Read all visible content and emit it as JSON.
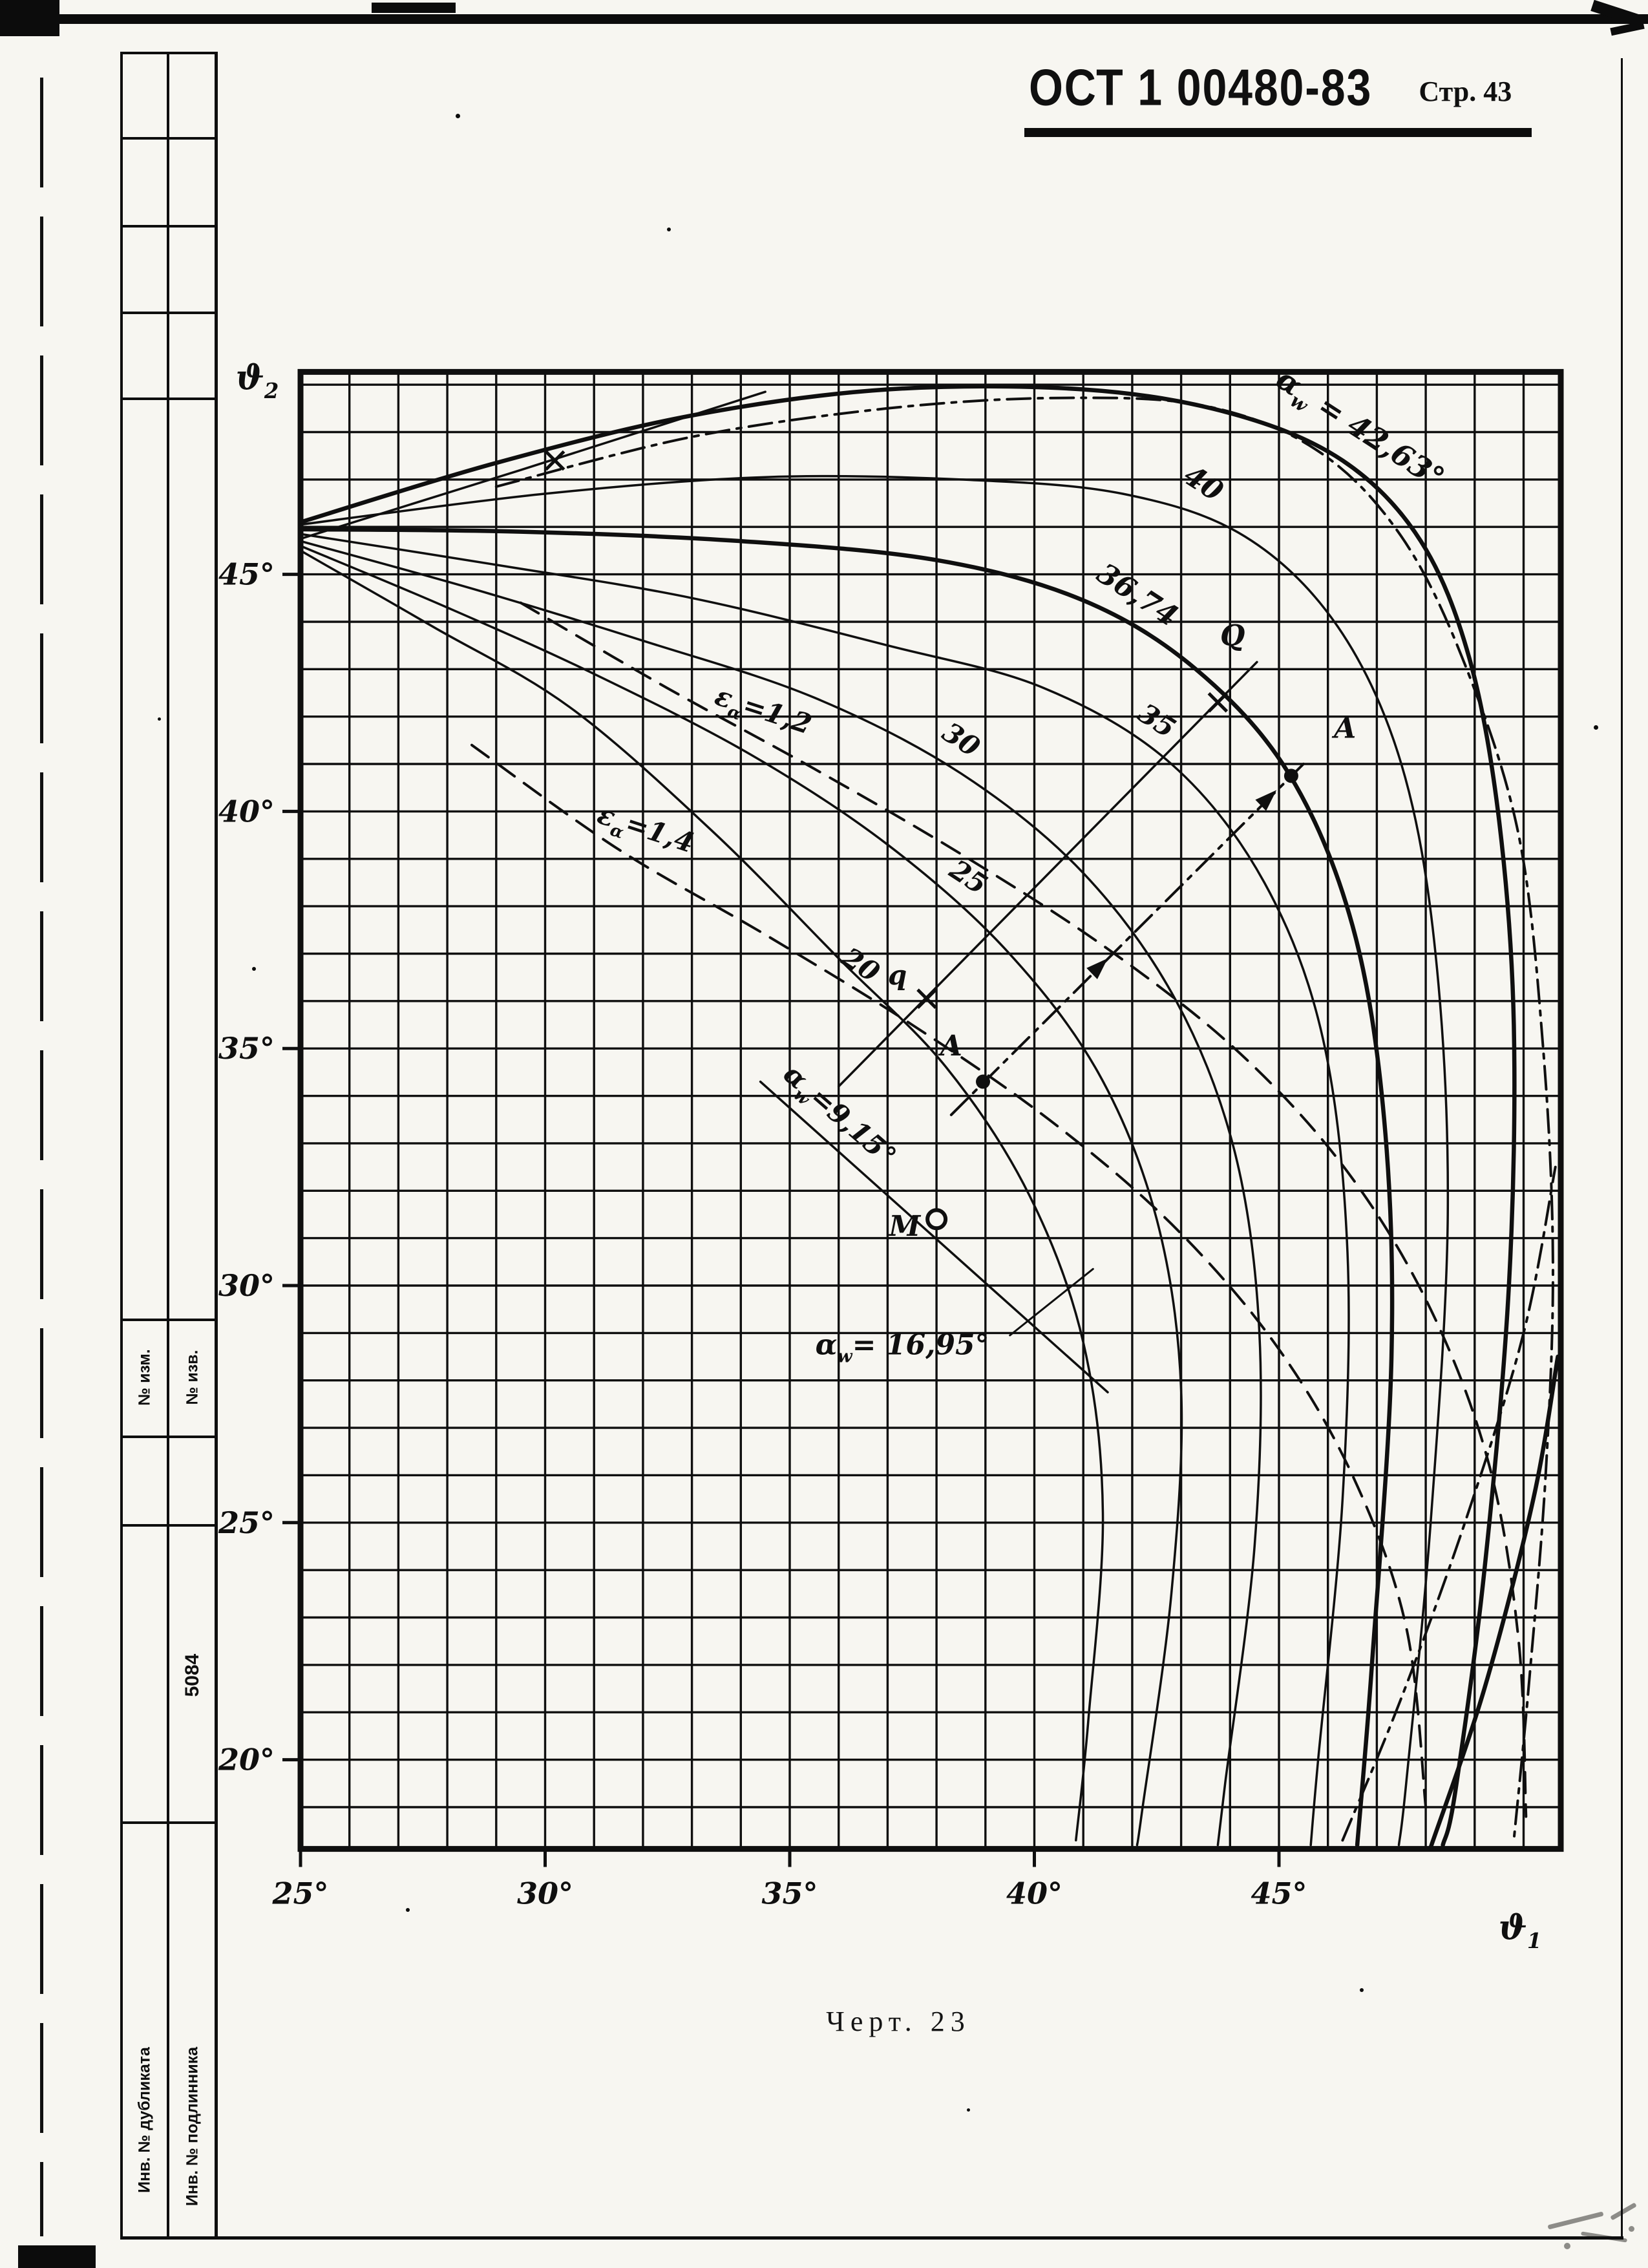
{
  "header": {
    "standard": "ОСТ 1 00480-83",
    "page": "Стр. 43"
  },
  "caption": "Черт. 23",
  "sidebar": {
    "no_izm": "№ изм.",
    "no_izv": "№ изв.",
    "code": "5084",
    "inv_dupl": "Инв. № дубликата",
    "inv_podl": "Инв. № подлинника"
  },
  "chart_data": {
    "type": "line",
    "title": "Черт. 23",
    "xlabel": "ϑ1",
    "ylabel": "ϑ2",
    "xlim": [
      25,
      50.76
    ],
    "ylim": [
      18.12,
      49.27
    ],
    "grid": {
      "on": true,
      "cell_deg": 1
    },
    "x_ticks": [
      {
        "v": 25,
        "label": "25°"
      },
      {
        "v": 30,
        "label": "30°"
      },
      {
        "v": 35,
        "label": "35°"
      },
      {
        "v": 40,
        "label": "40°"
      },
      {
        "v": 45,
        "label": "45°"
      }
    ],
    "y_ticks": [
      {
        "v": 20,
        "label": "20°"
      },
      {
        "v": 25,
        "label": "25°"
      },
      {
        "v": 30,
        "label": "30°"
      },
      {
        "v": 35,
        "label": "35°"
      },
      {
        "v": 40,
        "label": "40°"
      },
      {
        "v": 45,
        "label": "45°"
      }
    ],
    "axis_titles": [
      {
        "main": "ϑ",
        "sub": "2",
        "px": [
          398,
          602
        ],
        "size": 52
      },
      {
        "main": "ϑ",
        "sub": "1",
        "px": [
          2352,
          3000
        ],
        "size": 52
      }
    ],
    "series": [
      {
        "name": "alpha_w=42,63",
        "style": "solid",
        "w": 6.5,
        "pts": [
          [
            25,
            46.1
          ],
          [
            29,
            47.35
          ],
          [
            33,
            48.35
          ],
          [
            37,
            48.9
          ],
          [
            41,
            48.9
          ],
          [
            44,
            48.4
          ],
          [
            46.3,
            47.4
          ],
          [
            47.9,
            45.7
          ],
          [
            48.9,
            43.2
          ],
          [
            49.5,
            39.8
          ],
          [
            49.8,
            35.5
          ],
          [
            49.7,
            30
          ],
          [
            49.2,
            24
          ],
          [
            48.6,
            19.3
          ],
          [
            48.35,
            18.2
          ]
        ]
      },
      {
        "name": "alpha_w=42,63 right branch",
        "style": "solid",
        "w": 6.5,
        "pts": [
          [
            48.1,
            18.15
          ],
          [
            49.2,
            21.5
          ],
          [
            50.2,
            25.5
          ],
          [
            50.7,
            28.5
          ]
        ]
      },
      {
        "name": "alpha_w=40",
        "style": "solid",
        "w": 3.5,
        "pts": [
          [
            25,
            46.05
          ],
          [
            30,
            46.7
          ],
          [
            34.5,
            47.05
          ],
          [
            38.5,
            47.0
          ],
          [
            41.8,
            46.7
          ],
          [
            44.3,
            45.8
          ],
          [
            46.2,
            43.9
          ],
          [
            47.5,
            41.0
          ],
          [
            48.2,
            37.0
          ],
          [
            48.45,
            31.5
          ],
          [
            48.1,
            25
          ],
          [
            47.6,
            19.5
          ],
          [
            47.45,
            18.2
          ]
        ]
      },
      {
        "name": "alpha_w=36,74",
        "style": "solid",
        "w": 6.5,
        "pts": [
          [
            25,
            45.95
          ],
          [
            29.5,
            45.9
          ],
          [
            34,
            45.7
          ],
          [
            38,
            45.3
          ],
          [
            41,
            44.45
          ],
          [
            43.3,
            43.0
          ],
          [
            45.2,
            40.8
          ],
          [
            46.5,
            37.6
          ],
          [
            47.15,
            33.5
          ],
          [
            47.3,
            28.5
          ],
          [
            46.9,
            22
          ],
          [
            46.6,
            18.2
          ]
        ]
      },
      {
        "name": "alpha_w=35",
        "style": "solid",
        "w": 3.5,
        "pts": [
          [
            25,
            45.85
          ],
          [
            29,
            45.2
          ],
          [
            33,
            44.5
          ],
          [
            37,
            43.5
          ],
          [
            40.2,
            42.6
          ],
          [
            42.8,
            41.0
          ],
          [
            44.7,
            38.5
          ],
          [
            45.9,
            35.2
          ],
          [
            46.4,
            30.7
          ],
          [
            46.3,
            25.5
          ],
          [
            45.8,
            20
          ],
          [
            45.65,
            18.2
          ]
        ]
      },
      {
        "name": "alpha_w=30",
        "style": "solid",
        "w": 3.5,
        "pts": [
          [
            25,
            45.7
          ],
          [
            28.5,
            44.7
          ],
          [
            32,
            43.6
          ],
          [
            35.5,
            42.4
          ],
          [
            38.5,
            40.8
          ],
          [
            41,
            38.7
          ],
          [
            42.9,
            36.0
          ],
          [
            44.1,
            32.8
          ],
          [
            44.6,
            29
          ],
          [
            44.5,
            24.5
          ],
          [
            43.9,
            19.5
          ],
          [
            43.75,
            18.2
          ]
        ]
      },
      {
        "name": "alpha_w=25",
        "style": "solid",
        "w": 3.5,
        "pts": [
          [
            25,
            45.6
          ],
          [
            28,
            44.3
          ],
          [
            31,
            42.9
          ],
          [
            34.2,
            41.2
          ],
          [
            37,
            39.3
          ],
          [
            39.4,
            37.1
          ],
          [
            41.3,
            34.5
          ],
          [
            42.5,
            31.4
          ],
          [
            43,
            27.8
          ],
          [
            42.8,
            23.5
          ],
          [
            42.2,
            18.9
          ],
          [
            42.1,
            18.2
          ]
        ]
      },
      {
        "name": "alpha_w=20",
        "style": "solid",
        "w": 3.5,
        "pts": [
          [
            25,
            45.5
          ],
          [
            27.7,
            43.9
          ],
          [
            30.5,
            42.2
          ],
          [
            33.4,
            39.6
          ],
          [
            36,
            36.9
          ],
          [
            38.2,
            34.6
          ],
          [
            39.9,
            31.9
          ],
          [
            41,
            28.8
          ],
          [
            41.4,
            25.2
          ],
          [
            41.1,
            20.8
          ],
          [
            40.85,
            18.3
          ]
        ]
      },
      {
        "name": "eps_alpha=1,2",
        "style": "dash",
        "w": 4,
        "pts": [
          [
            29.5,
            44.4
          ],
          [
            32.5,
            42.6
          ],
          [
            35.5,
            40.9
          ],
          [
            38.5,
            39.1
          ],
          [
            41.5,
            37.1
          ],
          [
            44.2,
            34.9
          ],
          [
            46.4,
            32.4
          ],
          [
            48.1,
            29.5
          ],
          [
            49.3,
            26.2
          ],
          [
            49.9,
            22.5
          ],
          [
            50.05,
            18.8
          ]
        ]
      },
      {
        "name": "eps_alpha=1,4",
        "style": "dash",
        "w": 4,
        "pts": [
          [
            28.5,
            41.4
          ],
          [
            31.5,
            39.2
          ],
          [
            34.5,
            37.4
          ],
          [
            37.5,
            35.5
          ],
          [
            40.3,
            33.5
          ],
          [
            42.8,
            31.3
          ],
          [
            44.9,
            28.8
          ],
          [
            46.5,
            26.0
          ],
          [
            47.6,
            22.8
          ],
          [
            48.0,
            19.0
          ]
        ]
      },
      {
        "name": "dash-dot envelope top-right",
        "style": "dashdot",
        "w": 4,
        "pts": [
          [
            29,
            46.85
          ],
          [
            33,
            47.9
          ],
          [
            37,
            48.5
          ],
          [
            40.5,
            48.72
          ],
          [
            43.5,
            48.55
          ],
          [
            45.8,
            47.6
          ],
          [
            47.5,
            45.8
          ],
          [
            48.8,
            43.1
          ],
          [
            49.9,
            39.5
          ],
          [
            50.4,
            35
          ],
          [
            50.6,
            30.5
          ],
          [
            50.45,
            26
          ],
          [
            50.1,
            21.5
          ],
          [
            49.8,
            18.3
          ]
        ]
      },
      {
        "name": "dash-dot rising bottom-right",
        "style": "dashdot",
        "w": 4,
        "pts": [
          [
            46.3,
            18.3
          ],
          [
            47.5,
            21.3
          ],
          [
            48.8,
            25
          ],
          [
            50,
            29
          ],
          [
            50.65,
            32.5
          ]
        ]
      },
      {
        "name": "rising line top-left",
        "style": "solid",
        "w": 3.5,
        "line": true,
        "pts": [
          [
            25,
            45.75
          ],
          [
            29.5,
            47.2
          ],
          [
            34.5,
            48.85
          ]
        ]
      },
      {
        "name": "alpha_w=9,15 line through M",
        "style": "solid",
        "w": 3.5,
        "line": true,
        "pts": [
          [
            34.4,
            34.3
          ],
          [
            41.5,
            27.75
          ]
        ]
      },
      {
        "name": "construction line q-Q",
        "style": "solid",
        "w": 3.5,
        "line": true,
        "pts": [
          [
            36.0,
            34.2
          ],
          [
            44.55,
            43.15
          ]
        ]
      },
      {
        "name": "construction arrow line A-A",
        "style": "dashdot",
        "w": 4,
        "line": true,
        "pts": [
          [
            38.3,
            33.6
          ],
          [
            45.5,
            41.0
          ]
        ]
      },
      {
        "name": "pointer alpha_w=16,95",
        "style": "solid",
        "w": 3,
        "line": true,
        "pts": [
          [
            39.5,
            28.95
          ],
          [
            41.2,
            30.35
          ]
        ]
      }
    ],
    "labels": [
      {
        "main": "α",
        "sub": "w",
        "tail": " = 42,63°",
        "x": 46.55,
        "y": 47.9,
        "rot": 33,
        "size": 46
      },
      {
        "main": "40",
        "sub": "",
        "tail": "",
        "x": 43.35,
        "y": 46.75,
        "rot": 33,
        "size": 44
      },
      {
        "main": "36,74",
        "sub": "",
        "tail": "",
        "x": 42.0,
        "y": 44.4,
        "rot": 33,
        "size": 44
      },
      {
        "main": "35",
        "sub": "",
        "tail": "",
        "x": 42.4,
        "y": 41.75,
        "rot": 33,
        "size": 42
      },
      {
        "main": "30",
        "sub": "",
        "tail": "",
        "x": 38.4,
        "y": 41.35,
        "rot": 33,
        "size": 42
      },
      {
        "main": "25",
        "sub": "",
        "tail": "",
        "x": 38.55,
        "y": 38.45,
        "rot": 33,
        "size": 42
      },
      {
        "main": "20",
        "sub": "",
        "tail": "",
        "x": 36.35,
        "y": 36.6,
        "rot": 33,
        "size": 42
      },
      {
        "main": "ε",
        "sub": "α",
        "tail": "=1,2",
        "x": 34.4,
        "y": 41.95,
        "rot": 18,
        "size": 42
      },
      {
        "main": "ε",
        "sub": "α",
        "tail": "=1,4",
        "x": 32.0,
        "y": 39.45,
        "rot": 18,
        "size": 42
      },
      {
        "main": "α",
        "sub": "w",
        "tail": "=9,15°",
        "x": 35.9,
        "y": 33.45,
        "rot": 41,
        "size": 42
      },
      {
        "main": "α",
        "sub": "w",
        "tail": "= 16,95°",
        "x": 37.3,
        "y": 28.55,
        "rot": 0,
        "size": 44
      },
      {
        "main": "Q",
        "sub": "",
        "tail": "",
        "x": 44.05,
        "y": 43.5,
        "rot": 0,
        "size": 44
      },
      {
        "main": "A",
        "sub": "",
        "tail": "",
        "x": 46.35,
        "y": 41.55,
        "rot": 0,
        "size": 44
      },
      {
        "main": "A",
        "sub": "",
        "tail": "",
        "x": 38.3,
        "y": 34.85,
        "rot": 0,
        "size": 44
      },
      {
        "main": "q",
        "sub": "",
        "tail": "",
        "x": 37.2,
        "y": 36.35,
        "rot": 0,
        "size": 42
      },
      {
        "main": "M",
        "sub": "",
        "tail": "",
        "x": 37.35,
        "y": 31.05,
        "rot": 0,
        "size": 44
      }
    ],
    "markers": [
      {
        "type": "dot",
        "x": 45.25,
        "y": 40.75
      },
      {
        "type": "dot",
        "x": 38.95,
        "y": 34.3
      },
      {
        "type": "circle",
        "x": 38.0,
        "y": 31.4
      },
      {
        "type": "x",
        "x": 37.8,
        "y": 36.05
      },
      {
        "type": "x",
        "x": 43.75,
        "y": 42.3
      },
      {
        "type": "x",
        "x": 30.2,
        "y": 47.4
      }
    ],
    "arrows": [
      {
        "x": 41.5,
        "y": 36.9,
        "rot": -44
      },
      {
        "x": 44.95,
        "y": 40.45,
        "rot": -44
      }
    ]
  }
}
